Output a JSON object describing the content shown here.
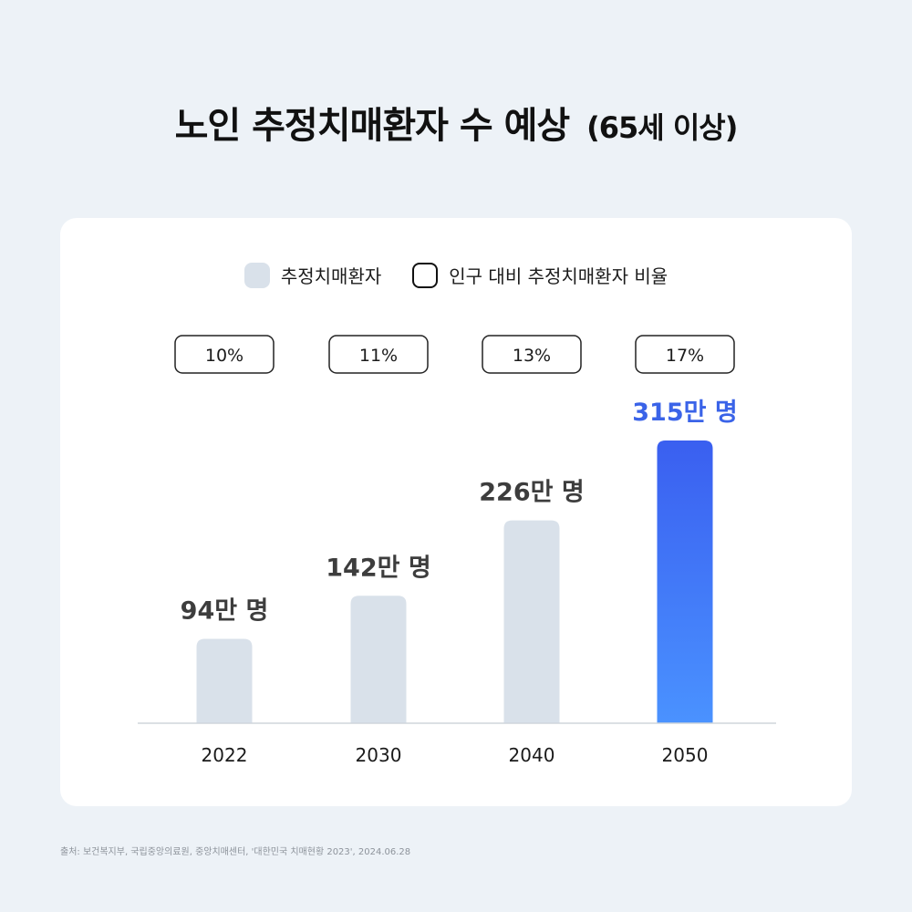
{
  "title": {
    "main": "노인 추정치매환자 수 예상",
    "sub": "(65세 이상)"
  },
  "legend": {
    "bar": "추정치매환자",
    "box": "인구 대비 추정치매환자 비율"
  },
  "colors": {
    "bar": "#d9e1ea",
    "highlight_top": "#3a5ff0",
    "highlight_bottom": "#4a92ff",
    "label": "#3d3d3d",
    "highlight_label": "#3a63e8",
    "axis": "#cfd5dc"
  },
  "chart_data": {
    "type": "bar",
    "categories": [
      "2022",
      "2030",
      "2040",
      "2050"
    ],
    "series": [
      {
        "name": "추정치매환자",
        "unit": "만 명",
        "values": [
          94,
          142,
          226,
          315
        ]
      },
      {
        "name": "인구 대비 추정치매환자 비율",
        "unit": "%",
        "values": [
          10,
          11,
          13,
          17
        ]
      }
    ],
    "value_labels": [
      "94만 명",
      "142만 명",
      "226만 명",
      "315만 명"
    ],
    "ratio_labels": [
      "10%",
      "11%",
      "13%",
      "17%"
    ],
    "highlight_index": 3,
    "legend_position": "top-center",
    "grid": false
  },
  "source": "출처: 보건복지부, 국립중앙의료원, 중앙치매센터, '대한민국 치매현황 2023', 2024.06.28"
}
